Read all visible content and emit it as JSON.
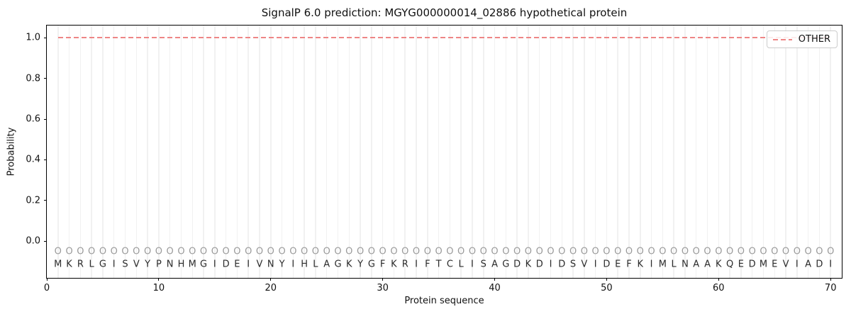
{
  "chart_data": {
    "type": "line",
    "title": "SignalP 6.0 prediction: MGYG000000014_02886 hypothetical protein",
    "xlabel": "Protein sequence",
    "ylabel": "Probability",
    "xlim": [
      0,
      71
    ],
    "ylim": [
      -0.18,
      1.06
    ],
    "x_ticks": [
      "0",
      "10",
      "20",
      "30",
      "40",
      "50",
      "60",
      "70"
    ],
    "y_ticks": [
      "0.0",
      "0.2",
      "0.4",
      "0.6",
      "0.8",
      "1.0"
    ],
    "grid": {
      "vertical_gridline_per_residue": true,
      "color": "#f1f1f1",
      "horizontal": false
    },
    "legend": {
      "position": "upper right",
      "entries": [
        {
          "label": "OTHER",
          "color": "#ee8686",
          "linestyle": "dashed"
        }
      ]
    },
    "series": [
      {
        "name": "OTHER",
        "color": "#ee8686",
        "linestyle": "dashed",
        "x_start": 1,
        "x_end": 70,
        "constant_y": 1.0,
        "note": "constant probability 1.0 across all 70 residues"
      }
    ],
    "residue_markers": {
      "symbol": "O",
      "y": -0.05,
      "color": "#9a9a9a"
    },
    "sequence": "MKRLGISVYPNHMGIDEIVNYIHLAGKYGFKRIFTCLISAGDKDIDSVIDEFKIMLNAAKQEDMEVIADI",
    "sequence_y": -0.115,
    "sequence_length": 70,
    "background": "#ffffff"
  }
}
